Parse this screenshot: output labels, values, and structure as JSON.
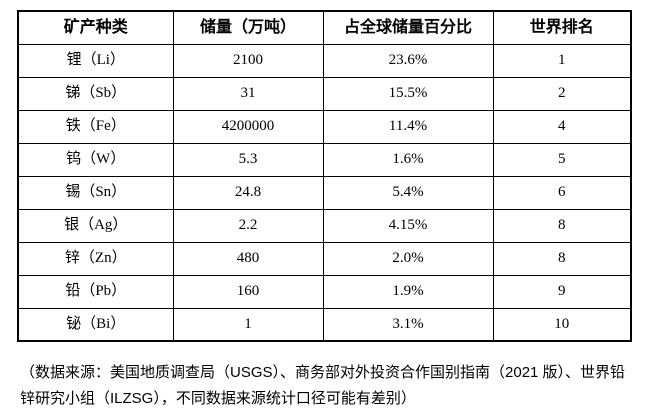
{
  "chart_data": {
    "type": "table",
    "columns": [
      "矿产种类",
      "储量（万吨）",
      "占全球储量百分比",
      "世界排名"
    ],
    "rows": [
      [
        "锂（Li）",
        "2100",
        "23.6%",
        "1"
      ],
      [
        "锑（Sb）",
        "31",
        "15.5%",
        "2"
      ],
      [
        "铁（Fe）",
        "4200000",
        "11.4%",
        "4"
      ],
      [
        "钨（W）",
        "5.3",
        "1.6%",
        "5"
      ],
      [
        "锡（Sn）",
        "24.8",
        "5.4%",
        "6"
      ],
      [
        "银（Ag）",
        "2.2",
        "4.15%",
        "8"
      ],
      [
        "锌（Zn）",
        "480",
        "2.0%",
        "8"
      ],
      [
        "铅（Pb）",
        "160",
        "1.9%",
        "9"
      ],
      [
        "铋（Bi）",
        "1",
        "3.1%",
        "10"
      ]
    ],
    "title": "",
    "note": "（数据来源：美国地质调查局（USGS）、商务部对外投资合作国别指南（2021 版）、世界铅锌研究小组（ILZSG），不同数据来源统计口径可能有差别）"
  },
  "footnote": {
    "line1": "（数据来源：美国地质调查局（USGS）、商务部对外投资合作国别指南（2021 版）、世界铅",
    "line2": "锌研究小组（ILZSG），不同数据来源统计口径可能有差别）"
  },
  "colors": {
    "border": "#000000",
    "text": "#000000",
    "background": "#ffffff"
  }
}
